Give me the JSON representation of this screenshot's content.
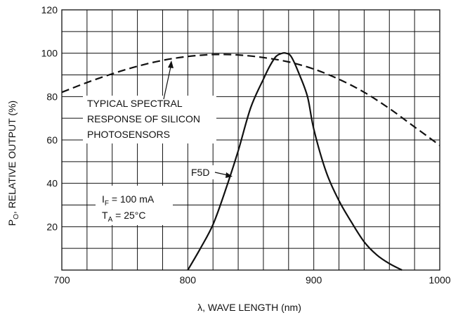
{
  "chart_data": {
    "type": "line",
    "xlabel": "λ, WAVE LENGTH (nm)",
    "ylabel_main": "P",
    "ylabel_sub": "O",
    "ylabel_rest": ", RELATIVE OUTPUT (%)",
    "xlim": [
      700,
      1000
    ],
    "ylim": [
      0,
      120
    ],
    "x_ticks": [
      700,
      800,
      900,
      1000
    ],
    "y_ticks": [
      20,
      40,
      60,
      80,
      100,
      120
    ],
    "grid": true,
    "x_grid_step": 20,
    "y_grid_step": 10,
    "series": [
      {
        "name": "TYPICAL SPECTRAL RESPONSE OF SILICON PHOTOSENSORS",
        "style": "dashed",
        "x": [
          700,
          720,
          740,
          760,
          780,
          800,
          820,
          840,
          860,
          880,
          900,
          920,
          940,
          960,
          980,
          1000
        ],
        "y": [
          82,
          86.5,
          90.5,
          94,
          96.7,
          98.5,
          99.4,
          99.2,
          98,
          96,
          92.7,
          88,
          82,
          74.5,
          66,
          57.5
        ]
      },
      {
        "name": "F5D",
        "style": "solid",
        "x": [
          800,
          810,
          820,
          830,
          840,
          850,
          860,
          865,
          870,
          875,
          878,
          882,
          888,
          895,
          900,
          910,
          920,
          930,
          940,
          950,
          960,
          970
        ],
        "y": [
          0,
          10,
          21,
          37,
          55,
          75,
          88,
          94,
          98.5,
          100,
          100,
          98.5,
          91,
          80,
          65,
          45,
          32,
          22,
          13,
          7,
          3,
          0
        ]
      }
    ],
    "annotations": {
      "spectral_text": [
        "TYPICAL SPECTRAL",
        "RESPONSE OF SILICON",
        "PHOTOSENSORS"
      ],
      "f5d_label": "F5D",
      "cond_if_main": "I",
      "cond_if_sub": "F",
      "cond_if_rest": " = 100 mA",
      "cond_ta_main": "T",
      "cond_ta_sub": "A",
      "cond_ta_rest": " = 25°C"
    },
    "colors": {
      "line": "#111111",
      "grid": "#111111"
    }
  }
}
